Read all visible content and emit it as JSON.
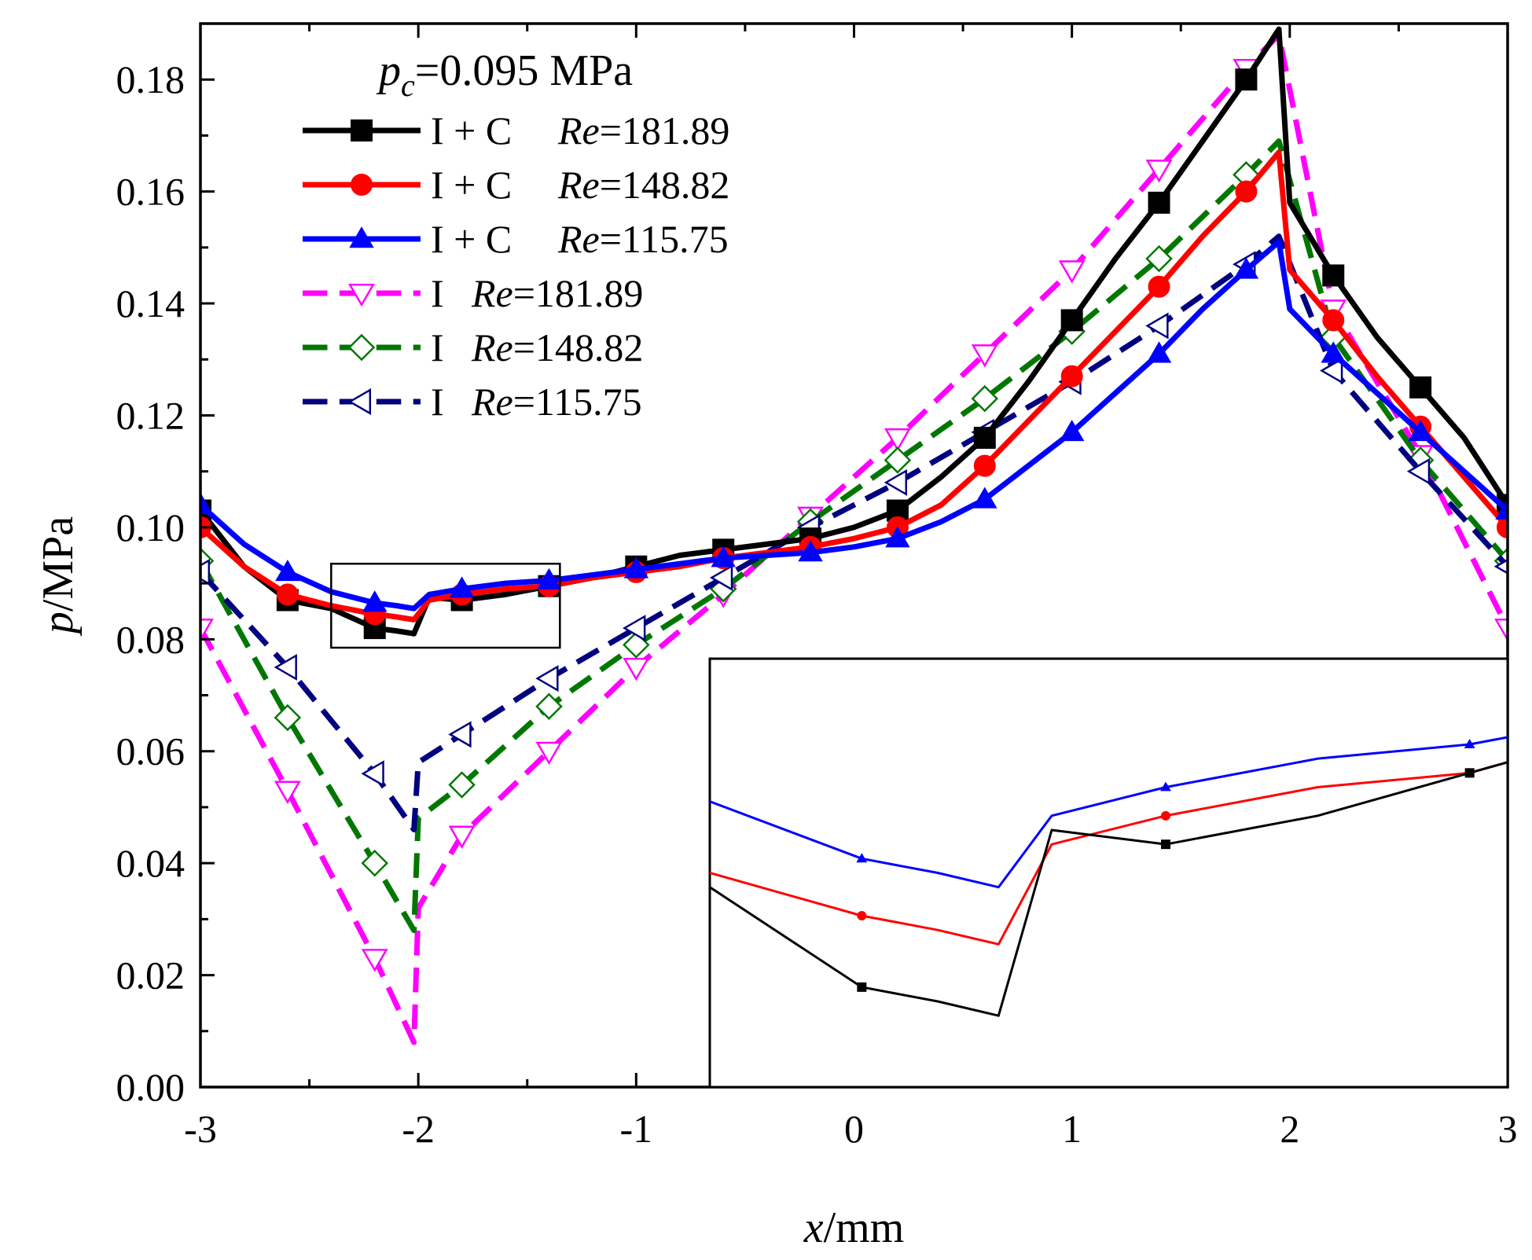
{
  "chart_data": {
    "type": "line",
    "xlabel_main": "x",
    "xlabel_unit": "/mm",
    "ylabel_main": "p",
    "ylabel_unit": "/MPa",
    "xlim": [
      -3,
      3
    ],
    "ylim": [
      0,
      0.19
    ],
    "x_ticks": [
      -3,
      -2,
      -1,
      0,
      1,
      2,
      3
    ],
    "x_tick_labels": [
      "-3",
      "-2",
      "-1",
      "0",
      "1",
      "2",
      "3"
    ],
    "y_ticks": [
      0,
      0.02,
      0.04,
      0.06,
      0.08,
      0.1,
      0.12,
      0.14,
      0.16,
      0.18
    ],
    "y_tick_labels": [
      "0.00",
      "0.02",
      "0.04",
      "0.06",
      "0.08",
      "0.10",
      "0.12",
      "0.14",
      "0.16",
      "0.18"
    ],
    "grid": false,
    "legend_position": "top-left",
    "legend_title_var": "p",
    "legend_title_sub": "c",
    "legend_title_value": "=0.095 MPa",
    "zoom_box": {
      "x": [
        -2.4,
        -1.35
      ],
      "y": [
        0.0785,
        0.0935
      ]
    },
    "series": [
      {
        "label_prefix": "I + C",
        "label_var": "Re",
        "label_value": "=181.89",
        "color": "#000000",
        "dash": "solid",
        "marker": "square-filled",
        "marker_x": [
          -3,
          -2.6,
          -2.2,
          -1.8,
          -1.4,
          -1,
          -0.6,
          -0.2,
          0.2,
          0.6,
          1,
          1.4,
          1.8,
          2.2,
          2.6,
          3
        ],
        "x": [
          -3,
          -2.8,
          -2.6,
          -2.4,
          -2.2,
          -2.1,
          -2.02,
          -1.95,
          -1.8,
          -1.6,
          -1.4,
          -1.2,
          -1,
          -0.8,
          -0.6,
          -0.4,
          -0.2,
          0,
          0.2,
          0.4,
          0.6,
          0.8,
          1,
          1.2,
          1.4,
          1.6,
          1.8,
          1.95,
          2.0,
          2.2,
          2.4,
          2.6,
          2.8,
          3
        ],
        "y": [
          0.103,
          0.093,
          0.087,
          0.0855,
          0.082,
          0.0815,
          0.081,
          0.0875,
          0.087,
          0.088,
          0.0895,
          0.091,
          0.093,
          0.095,
          0.096,
          0.097,
          0.098,
          0.1,
          0.103,
          0.109,
          0.116,
          0.126,
          0.137,
          0.148,
          0.158,
          0.169,
          0.18,
          0.189,
          0.158,
          0.145,
          0.134,
          0.125,
          0.116,
          0.104
        ]
      },
      {
        "label_prefix": "I + C",
        "label_var": "Re",
        "label_value": "=148.82",
        "color": "#ff0000",
        "dash": "solid",
        "marker": "circle-filled",
        "marker_x": [
          -3,
          -2.6,
          -2.2,
          -1.8,
          -1.4,
          -1,
          -0.6,
          -0.2,
          0.2,
          0.6,
          1,
          1.4,
          1.8,
          2.2,
          2.6,
          3
        ],
        "x": [
          -3,
          -2.8,
          -2.6,
          -2.4,
          -2.2,
          -2.1,
          -2.02,
          -1.95,
          -1.8,
          -1.6,
          -1.4,
          -1.2,
          -1,
          -0.8,
          -0.6,
          -0.4,
          -0.2,
          0,
          0.2,
          0.4,
          0.6,
          0.8,
          1,
          1.2,
          1.4,
          1.6,
          1.8,
          1.95,
          2.0,
          2.2,
          2.4,
          2.6,
          2.8,
          3
        ],
        "y": [
          0.1,
          0.093,
          0.088,
          0.086,
          0.0845,
          0.084,
          0.0835,
          0.087,
          0.088,
          0.089,
          0.0895,
          0.091,
          0.092,
          0.093,
          0.0945,
          0.0955,
          0.0965,
          0.098,
          0.1,
          0.104,
          0.111,
          0.119,
          0.127,
          0.135,
          0.143,
          0.152,
          0.16,
          0.167,
          0.146,
          0.137,
          0.127,
          0.118,
          0.109,
          0.1
        ]
      },
      {
        "label_prefix": "I + C",
        "label_var": "Re",
        "label_value": "=115.75",
        "color": "#0000ff",
        "dash": "solid",
        "marker": "triangle-up-filled",
        "marker_x": [
          -3,
          -2.6,
          -2.2,
          -1.8,
          -1.4,
          -1,
          -0.6,
          -0.2,
          0.2,
          0.6,
          1,
          1.4,
          1.8,
          2.2,
          2.6,
          3
        ],
        "x": [
          -3,
          -2.8,
          -2.6,
          -2.4,
          -2.2,
          -2.1,
          -2.02,
          -1.95,
          -1.8,
          -1.6,
          -1.4,
          -1.2,
          -1,
          -0.8,
          -0.6,
          -0.4,
          -0.2,
          0,
          0.2,
          0.4,
          0.6,
          0.8,
          1,
          1.2,
          1.4,
          1.6,
          1.8,
          1.95,
          2.0,
          2.2,
          2.4,
          2.6,
          2.8,
          3
        ],
        "y": [
          0.104,
          0.097,
          0.092,
          0.0885,
          0.0865,
          0.086,
          0.0855,
          0.088,
          0.089,
          0.09,
          0.0905,
          0.0915,
          0.0925,
          0.0935,
          0.0945,
          0.095,
          0.0955,
          0.0965,
          0.098,
          0.101,
          0.105,
          0.111,
          0.117,
          0.124,
          0.131,
          0.139,
          0.146,
          0.151,
          0.139,
          0.131,
          0.124,
          0.117,
          0.11,
          0.103
        ]
      },
      {
        "label_prefix": "I",
        "label_var": "Re",
        "label_value": "=181.89",
        "color": "#ff00ff",
        "dash": "dashed",
        "marker": "triangle-down-open",
        "marker_x": [
          -3,
          -2.6,
          -2.2,
          -1.8,
          -1.4,
          -1,
          -0.6,
          -0.2,
          0.2,
          0.6,
          1,
          1.4,
          1.8,
          2.2,
          2.6,
          3
        ],
        "x": [
          -3,
          -2.6,
          -2.2,
          -2.02,
          -2.0,
          -1.8,
          -1.4,
          -1,
          -0.6,
          -0.2,
          0.2,
          0.6,
          1,
          1.4,
          1.8,
          1.95,
          2.2,
          2.6,
          3
        ],
        "y": [
          0.082,
          0.053,
          0.023,
          0.008,
          0.032,
          0.045,
          0.06,
          0.075,
          0.088,
          0.102,
          0.116,
          0.131,
          0.146,
          0.164,
          0.182,
          0.188,
          0.139,
          0.113,
          0.082
        ]
      },
      {
        "label_prefix": "I",
        "label_var": "Re",
        "label_value": "=148.82",
        "color": "#007700",
        "dash": "dashed",
        "marker": "diamond-open",
        "marker_x": [
          -3,
          -2.6,
          -2.2,
          -1.8,
          -1.4,
          -1,
          -0.6,
          -0.2,
          0.2,
          0.6,
          1,
          1.4,
          1.8,
          2.2,
          2.6,
          3
        ],
        "x": [
          -3,
          -2.6,
          -2.2,
          -2.02,
          -2.0,
          -1.8,
          -1.4,
          -1,
          -0.6,
          -0.2,
          0.2,
          0.6,
          1,
          1.4,
          1.8,
          1.95,
          2.2,
          2.6,
          3
        ],
        "y": [
          0.094,
          0.066,
          0.04,
          0.028,
          0.048,
          0.054,
          0.068,
          0.079,
          0.089,
          0.101,
          0.112,
          0.123,
          0.135,
          0.148,
          0.163,
          0.169,
          0.134,
          0.112,
          0.094
        ]
      },
      {
        "label_prefix": "I",
        "label_var": "Re",
        "label_value": "=115.75",
        "color": "#000080",
        "dash": "dashed",
        "marker": "triangle-left-open",
        "marker_x": [
          -3,
          -2.6,
          -2.2,
          -1.8,
          -1.4,
          -1,
          -0.6,
          -0.2,
          0.2,
          0.6,
          1,
          1.4,
          1.8,
          2.2,
          2.6,
          3
        ],
        "x": [
          -3,
          -2.6,
          -2.2,
          -2.02,
          -2.0,
          -1.8,
          -1.4,
          -1,
          -0.6,
          -0.2,
          0.2,
          0.6,
          1,
          1.4,
          1.8,
          1.95,
          2.2,
          2.6,
          3
        ],
        "y": [
          0.092,
          0.075,
          0.056,
          0.046,
          0.058,
          0.063,
          0.073,
          0.082,
          0.091,
          0.1,
          0.108,
          0.117,
          0.126,
          0.136,
          0.147,
          0.152,
          0.128,
          0.11,
          0.093
        ]
      }
    ]
  }
}
